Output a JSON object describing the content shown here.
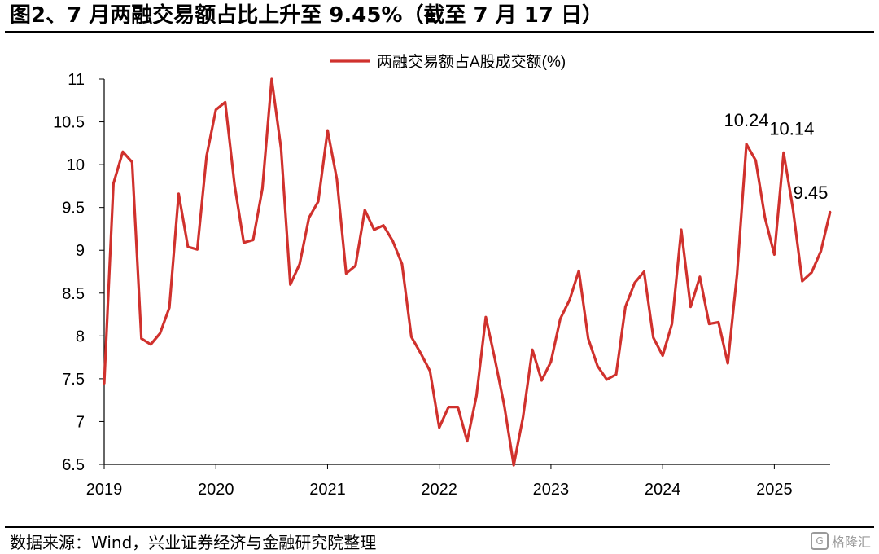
{
  "title": "图2、7 月两融交易额占比上升至 9.45%（截至 7 月 17 日）",
  "source": "数据来源：Wind，兴业证券经济与金融研究院整理",
  "watermark": "格隆汇",
  "colors": {
    "series": "#d0312d",
    "axis": "#000000",
    "text": "#000000"
  },
  "chart_data": {
    "type": "line",
    "title": "",
    "xlabel": "",
    "ylabel": "",
    "ylim": [
      6.5,
      11
    ],
    "yticks": [
      "6.5",
      "7",
      "7.5",
      "8",
      "8.5",
      "9",
      "9.5",
      "10",
      "10.5",
      "11"
    ],
    "xticks": [
      "2019",
      "2020",
      "2021",
      "2022",
      "2023",
      "2024",
      "2025"
    ],
    "xrange_months": [
      "2019-01",
      "2025-07"
    ],
    "legend_position": "top-center",
    "grid": false,
    "series": [
      {
        "name": "两融交易额占A股成交额(%)",
        "x": [
          "2019-01",
          "2019-02",
          "2019-03",
          "2019-04",
          "2019-05",
          "2019-06",
          "2019-07",
          "2019-08",
          "2019-09",
          "2019-10",
          "2019-11",
          "2019-12",
          "2020-01",
          "2020-02",
          "2020-03",
          "2020-04",
          "2020-05",
          "2020-06",
          "2020-07",
          "2020-08",
          "2020-09",
          "2020-10",
          "2020-11",
          "2020-12",
          "2021-01",
          "2021-02",
          "2021-03",
          "2021-04",
          "2021-05",
          "2021-06",
          "2021-07",
          "2021-08",
          "2021-09",
          "2021-10",
          "2021-11",
          "2021-12",
          "2022-01",
          "2022-02",
          "2022-03",
          "2022-04",
          "2022-05",
          "2022-06",
          "2022-07",
          "2022-08",
          "2022-09",
          "2022-10",
          "2022-11",
          "2022-12",
          "2023-01",
          "2023-02",
          "2023-03",
          "2023-04",
          "2023-05",
          "2023-06",
          "2023-07",
          "2023-08",
          "2023-09",
          "2023-10",
          "2023-11",
          "2023-12",
          "2024-01",
          "2024-02",
          "2024-03",
          "2024-04",
          "2024-05",
          "2024-06",
          "2024-07",
          "2024-08",
          "2024-09",
          "2024-10",
          "2024-11",
          "2024-12",
          "2025-01",
          "2025-02",
          "2025-03",
          "2025-04",
          "2025-05",
          "2025-06",
          "2025-07"
        ],
        "values": [
          7.44,
          9.78,
          10.15,
          10.03,
          7.97,
          7.9,
          8.03,
          8.33,
          9.66,
          9.04,
          9.01,
          10.1,
          10.64,
          10.73,
          9.77,
          9.09,
          9.12,
          9.72,
          11.0,
          10.19,
          8.6,
          8.84,
          9.38,
          9.57,
          10.4,
          9.83,
          8.73,
          8.82,
          9.47,
          9.24,
          9.29,
          9.11,
          8.84,
          7.99,
          7.8,
          7.59,
          6.93,
          7.17,
          7.17,
          6.77,
          7.3,
          8.22,
          7.72,
          7.18,
          6.49,
          7.05,
          7.84,
          7.48,
          7.7,
          8.2,
          8.42,
          8.76,
          7.97,
          7.65,
          7.49,
          7.55,
          8.34,
          8.62,
          8.75,
          7.98,
          7.77,
          8.14,
          9.24,
          8.34,
          8.69,
          8.14,
          8.16,
          7.68,
          8.72,
          10.24,
          10.05,
          9.38,
          8.95,
          10.14,
          9.48,
          8.64,
          8.74,
          8.99,
          9.45
        ]
      }
    ],
    "annotations": [
      {
        "text": "10.24",
        "x": "2024-10",
        "y": 10.24
      },
      {
        "text": "10.14",
        "x": "2025-02",
        "y": 10.14
      },
      {
        "text": "9.45",
        "x": "2025-07",
        "y": 9.45
      }
    ]
  }
}
